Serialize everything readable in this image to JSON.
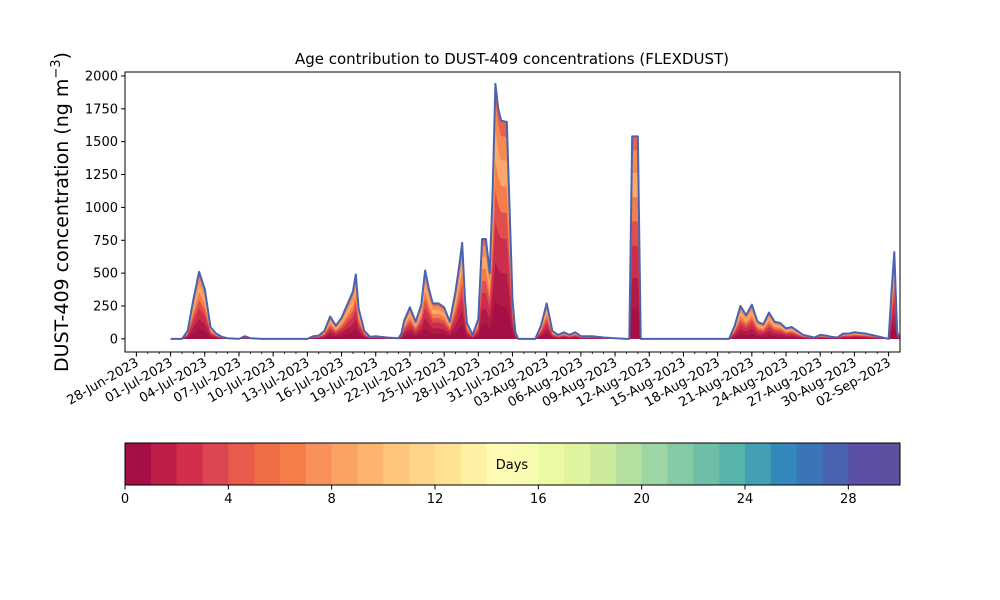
{
  "chart_data": {
    "type": "area",
    "title": "Age contribution to DUST-409 concentrations (FLEXDUST)",
    "ylabel_main": "DUST-409 concentration (ng m",
    "ylabel_sup": "−3",
    "ylabel_close": ")",
    "xlabel": "",
    "ylim": [
      -100,
      2030
    ],
    "yticks": [
      0,
      250,
      500,
      750,
      1000,
      1250,
      1500,
      1750,
      2000
    ],
    "ytick_labels": [
      "0",
      "250",
      "500",
      "750",
      "1000",
      "1250",
      "1500",
      "1750",
      "2000"
    ],
    "x_axis_type": "date",
    "xlim": [
      "2023-06-27",
      "2023-09-03"
    ],
    "xtick_dates": [
      "2023-06-28",
      "2023-07-01",
      "2023-07-04",
      "2023-07-07",
      "2023-07-10",
      "2023-07-13",
      "2023-07-16",
      "2023-07-19",
      "2023-07-22",
      "2023-07-25",
      "2023-07-28",
      "2023-07-31",
      "2023-08-03",
      "2023-08-06",
      "2023-08-09",
      "2023-08-12",
      "2023-08-15",
      "2023-08-18",
      "2023-08-21",
      "2023-08-24",
      "2023-08-27",
      "2023-08-30",
      "2023-09-02"
    ],
    "xtick_labels": [
      "28-Jun-2023",
      "01-Jul-2023",
      "04-Jul-2023",
      "07-Jul-2023",
      "10-Jul-2023",
      "13-Jul-2023",
      "16-Jul-2023",
      "19-Jul-2023",
      "22-Jul-2023",
      "25-Jul-2023",
      "28-Jul-2023",
      "31-Jul-2023",
      "03-Aug-2023",
      "06-Aug-2023",
      "09-Aug-2023",
      "12-Aug-2023",
      "15-Aug-2023",
      "18-Aug-2023",
      "21-Aug-2023",
      "24-Aug-2023",
      "27-Aug-2023",
      "30-Aug-2023",
      "02-Sep-2023"
    ],
    "total_series": [
      [
        "2023-07-01",
        0
      ],
      [
        "2023-07-02",
        0
      ],
      [
        "2023-07-02 12:00",
        60
      ],
      [
        "2023-07-03",
        300
      ],
      [
        "2023-07-03 12:00",
        510
      ],
      [
        "2023-07-04",
        380
      ],
      [
        "2023-07-04 12:00",
        90
      ],
      [
        "2023-07-05",
        40
      ],
      [
        "2023-07-05 12:00",
        15
      ],
      [
        "2023-07-06",
        5
      ],
      [
        "2023-07-07",
        0
      ],
      [
        "2023-07-07 12:00",
        20
      ],
      [
        "2023-07-08",
        5
      ],
      [
        "2023-07-09",
        0
      ],
      [
        "2023-07-13",
        0
      ],
      [
        "2023-07-13 12:00",
        20
      ],
      [
        "2023-07-14",
        25
      ],
      [
        "2023-07-14 12:00",
        60
      ],
      [
        "2023-07-15",
        170
      ],
      [
        "2023-07-15 12:00",
        100
      ],
      [
        "2023-07-16",
        160
      ],
      [
        "2023-07-16 12:00",
        260
      ],
      [
        "2023-07-17",
        360
      ],
      [
        "2023-07-17 06:00",
        490
      ],
      [
        "2023-07-17 12:00",
        230
      ],
      [
        "2023-07-18",
        60
      ],
      [
        "2023-07-18 12:00",
        15
      ],
      [
        "2023-07-19",
        20
      ],
      [
        "2023-07-20",
        10
      ],
      [
        "2023-07-21",
        5
      ],
      [
        "2023-07-21 06:00",
        40
      ],
      [
        "2023-07-21 12:00",
        140
      ],
      [
        "2023-07-22",
        240
      ],
      [
        "2023-07-22 12:00",
        130
      ],
      [
        "2023-07-23",
        260
      ],
      [
        "2023-07-23 08:00",
        520
      ],
      [
        "2023-07-23 16:00",
        380
      ],
      [
        "2023-07-24",
        270
      ],
      [
        "2023-07-24 12:00",
        270
      ],
      [
        "2023-07-25",
        240
      ],
      [
        "2023-07-25 12:00",
        130
      ],
      [
        "2023-07-26",
        360
      ],
      [
        "2023-07-26 08:00",
        560
      ],
      [
        "2023-07-26 14:00",
        730
      ],
      [
        "2023-07-26 20:00",
        300
      ],
      [
        "2023-07-27",
        120
      ],
      [
        "2023-07-27 12:00",
        30
      ],
      [
        "2023-07-28",
        150
      ],
      [
        "2023-07-28 08:00",
        760
      ],
      [
        "2023-07-28 16:00",
        760
      ],
      [
        "2023-07-29",
        500
      ],
      [
        "2023-07-29 06:00",
        1100
      ],
      [
        "2023-07-29 12:00",
        1940
      ],
      [
        "2023-07-29 18:00",
        1750
      ],
      [
        "2023-07-30",
        1660
      ],
      [
        "2023-07-30 12:00",
        1650
      ],
      [
        "2023-07-31",
        300
      ],
      [
        "2023-07-31 06:00",
        50
      ],
      [
        "2023-07-31 12:00",
        0
      ],
      [
        "2023-08-02",
        0
      ],
      [
        "2023-08-02 12:00",
        100
      ],
      [
        "2023-08-03",
        270
      ],
      [
        "2023-08-03 12:00",
        60
      ],
      [
        "2023-08-04",
        30
      ],
      [
        "2023-08-04 12:00",
        50
      ],
      [
        "2023-08-05",
        30
      ],
      [
        "2023-08-05 12:00",
        50
      ],
      [
        "2023-08-06",
        20
      ],
      [
        "2023-08-07",
        20
      ],
      [
        "2023-08-08",
        10
      ],
      [
        "2023-08-09",
        5
      ],
      [
        "2023-08-10",
        0
      ],
      [
        "2023-08-10 06:00",
        0
      ],
      [
        "2023-08-10 12:00",
        1540
      ],
      [
        "2023-08-11",
        1540
      ],
      [
        "2023-08-11 06:00",
        0
      ],
      [
        "2023-08-19",
        0
      ],
      [
        "2023-08-19 12:00",
        100
      ],
      [
        "2023-08-20",
        250
      ],
      [
        "2023-08-20 12:00",
        180
      ],
      [
        "2023-08-21",
        260
      ],
      [
        "2023-08-21 12:00",
        130
      ],
      [
        "2023-08-22",
        110
      ],
      [
        "2023-08-22 12:00",
        200
      ],
      [
        "2023-08-23",
        130
      ],
      [
        "2023-08-23 12:00",
        120
      ],
      [
        "2023-08-24",
        80
      ],
      [
        "2023-08-24 12:00",
        90
      ],
      [
        "2023-08-25",
        60
      ],
      [
        "2023-08-25 12:00",
        30
      ],
      [
        "2023-08-26",
        20
      ],
      [
        "2023-08-26 12:00",
        10
      ],
      [
        "2023-08-27",
        30
      ],
      [
        "2023-08-27 12:00",
        25
      ],
      [
        "2023-08-28",
        15
      ],
      [
        "2023-08-28 12:00",
        10
      ],
      [
        "2023-08-29",
        40
      ],
      [
        "2023-08-29 12:00",
        40
      ],
      [
        "2023-08-30",
        50
      ],
      [
        "2023-08-31",
        40
      ],
      [
        "2023-09-01",
        20
      ],
      [
        "2023-09-01 12:00",
        10
      ],
      [
        "2023-09-02",
        0
      ],
      [
        "2023-09-02 06:00",
        350
      ],
      [
        "2023-09-02 12:00",
        660
      ],
      [
        "2023-09-02 18:00",
        50
      ],
      [
        "2023-09-03",
        0
      ]
    ],
    "colorbar": {
      "label": "Days",
      "range": [
        0,
        30
      ],
      "ticks": [
        0,
        4,
        8,
        12,
        16,
        20,
        24,
        28
      ],
      "tick_labels": [
        "0",
        "4",
        "8",
        "12",
        "16",
        "20",
        "24",
        "28"
      ],
      "colors": [
        "#a50f46",
        "#be1e48",
        "#d12f4c",
        "#dd4650",
        "#e85a4c",
        "#f06c45",
        "#f57d4a",
        "#f9925a",
        "#fba365",
        "#fdb46f",
        "#fec67c",
        "#fed589",
        "#fee292",
        "#fff1a3",
        "#fffbb4",
        "#f8fcb1",
        "#edf8a2",
        "#e0f39e",
        "#cbea9c",
        "#b5e09f",
        "#9dd5a3",
        "#85caa4",
        "#6ebfa8",
        "#58b3ab",
        "#449fb5",
        "#3389bc",
        "#3a75b8",
        "#4a63af",
        "#5a4fa2",
        "#5e4fa1"
      ]
    },
    "grid": false,
    "legend": "colorbar-bottom"
  }
}
